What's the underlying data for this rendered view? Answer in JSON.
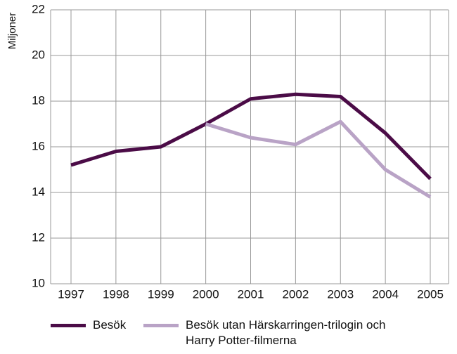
{
  "chart_data": {
    "type": "line",
    "y_label": "Miljoner",
    "categories": [
      "1997",
      "1998",
      "1999",
      "2000",
      "2001",
      "2002",
      "2003",
      "2004",
      "2005"
    ],
    "series": [
      {
        "name": "Besök",
        "color": "#4b0c47",
        "values": [
          15.2,
          15.8,
          16.0,
          17.0,
          18.1,
          18.3,
          18.2,
          16.6,
          14.6
        ]
      },
      {
        "name": "Besök utan Härskarringen-trilogin och Harry Potter-filmerna",
        "color": "#b9a3c6",
        "values": [
          null,
          null,
          null,
          17.0,
          16.4,
          16.1,
          17.1,
          15.0,
          13.8
        ]
      }
    ],
    "ylim": [
      10,
      22
    ],
    "yticks": [
      10,
      12,
      14,
      16,
      18,
      20,
      22
    ],
    "grid": true
  }
}
